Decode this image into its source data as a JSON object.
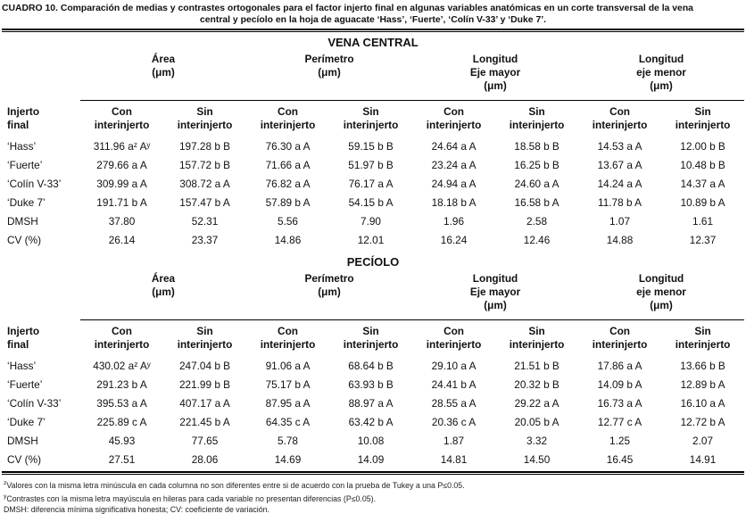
{
  "caption": {
    "line1": "CUADRO 10. Comparación de medias y contrastes ortogonales para el factor injerto final en algunas variables anatómicas en un corte transversal de la vena",
    "line2": "central y pecíolo en la hoja de aguacate ‘Hass’, ‘Fuerte’, ‘Colín V-33’ y ‘Duke 7’."
  },
  "table": {
    "stub_header": "Injerto\nfinal",
    "group_headers": [
      "Área\n(μm)",
      "Perímetro\n(μm)",
      "Longitud\nEje mayor\n(μm)",
      "Longitud\neje menor\n(μm)"
    ],
    "sub_headers": [
      "Con\ninterinjerto",
      "Sin\ninterinjerto"
    ]
  },
  "sections": [
    {
      "heading": "VENA CENTRAL",
      "rows": [
        {
          "label": "‘Hass’",
          "cells": [
            "311.96 aᶻ Aʸ",
            "197.28 b B",
            "76.30 a A",
            "59.15 b B",
            "24.64 a A",
            "18.58 b B",
            "14.53 a A",
            "12.00 b B"
          ]
        },
        {
          "label": "‘Fuerte’",
          "cells": [
            "279.66 a A",
            "157.72 b B",
            "71.66 a A",
            "51.97 b B",
            "23.24 a A",
            "16.25 b B",
            "13.67 a A",
            "10.48 b B"
          ]
        },
        {
          "label": "‘Colín V-33’",
          "cells": [
            "309.99 a A",
            "308.72 a A",
            "76.82 a A",
            "76.17 a A",
            "24.94 a A",
            "24.60 a A",
            "14.24 a A",
            "14.37 a A"
          ]
        },
        {
          "label": "‘Duke 7’",
          "cells": [
            "191.71 b A",
            "157.47 b A",
            "57.89 b A",
            "54.15 b A",
            "18.18 b A",
            "16.58 b A",
            "11.78 b A",
            "10.89 b A"
          ]
        },
        {
          "label": "DMSH",
          "cells": [
            "37.80",
            "52.31",
            "5.56",
            "7.90",
            "1.96",
            "2.58",
            "1.07",
            "1.61"
          ]
        },
        {
          "label": "CV (%)",
          "cells": [
            "26.14",
            "23.37",
            "14.86",
            "12.01",
            "16.24",
            "12.46",
            "14.88",
            "12.37"
          ]
        }
      ]
    },
    {
      "heading": "PECÍOLO",
      "rows": [
        {
          "label": "‘Hass’",
          "cells": [
            "430.02 aᶻ Aʸ",
            "247.04 b B",
            "91.06 a A",
            "68.64 b B",
            "29.10 a A",
            "21.51 b B",
            "17.86 a A",
            "13.66 b B"
          ]
        },
        {
          "label": "‘Fuerte’",
          "cells": [
            "291.23 b A",
            "221.99 b B",
            "75.17 b A",
            "63.93 b B",
            "24.41 b A",
            "20.32 b B",
            "14.09 b A",
            "12.89 b A"
          ]
        },
        {
          "label": "‘Colín V-33’",
          "cells": [
            "395.53 a A",
            "407.17 a A",
            "87.95 a A",
            "88.97 a A",
            "28.55 a A",
            "29.22 a A",
            "16.73 a A",
            "16.10 a A"
          ]
        },
        {
          "label": "‘Duke 7’",
          "cells": [
            "225.89 c A",
            "221.45 b A",
            "64.35 c A",
            "63.42 b A",
            "20.36 c A",
            "20.05 b A",
            "12.77 c A",
            "12.72 b A"
          ]
        },
        {
          "label": "DMSH",
          "cells": [
            "45.93",
            "77.65",
            "5.78",
            "10.08",
            "1.87",
            "3.32",
            "1.25",
            "2.07"
          ]
        },
        {
          "label": "CV (%)",
          "cells": [
            "27.51",
            "28.06",
            "14.69",
            "14.09",
            "14.81",
            "14.50",
            "16.45",
            "14.91"
          ]
        }
      ]
    }
  ],
  "footnotes": [
    {
      "marker": "z",
      "text": "Valores con la misma letra minúscula en cada columna no son diferentes entre si de acuerdo con la prueba de Tukey a una P≤0.05."
    },
    {
      "marker": "y",
      "text": "Contrastes con la misma letra mayúscula en hileras para cada variable no presentan diferencias (P≤0.05)."
    },
    {
      "marker": "",
      "text": "DMSH: diferencia mínima significativa honesta; CV: coeficiente de variación."
    }
  ]
}
